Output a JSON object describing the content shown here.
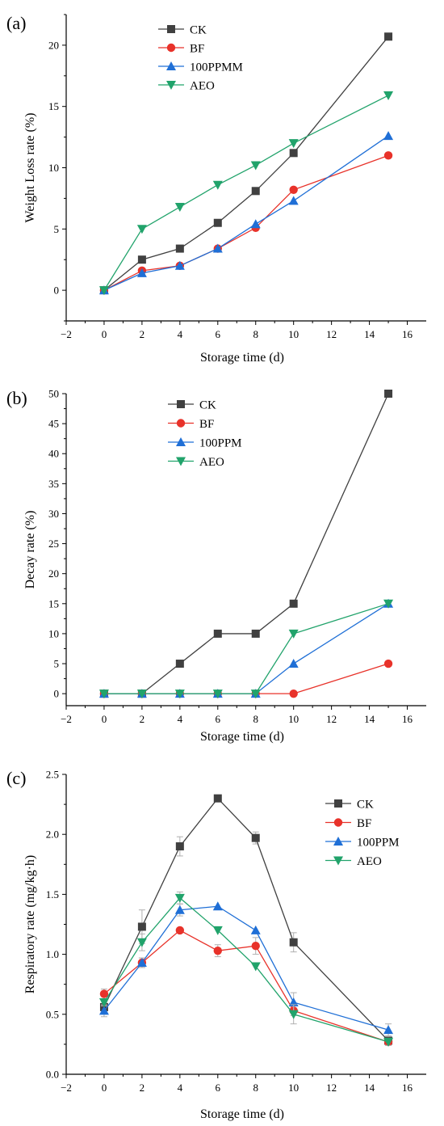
{
  "chart_data": [
    {
      "type": "line",
      "panel_label": "(a)",
      "xlabel": "Storage time (d)",
      "ylabel": "Weight Loss rate (%)",
      "xlim": [
        -2,
        17
      ],
      "ylim": [
        -2.5,
        22.5
      ],
      "xticks": [
        -2,
        0,
        2,
        4,
        6,
        8,
        10,
        12,
        14,
        16
      ],
      "yticks": [
        0,
        5,
        10,
        15,
        20
      ],
      "x": [
        0,
        2,
        4,
        6,
        8,
        10,
        15
      ],
      "legend_position": "top-center",
      "series": [
        {
          "name": "CK",
          "color": "#404040",
          "marker": "square",
          "values": [
            0,
            2.5,
            3.4,
            5.5,
            8.1,
            11.2,
            20.7
          ]
        },
        {
          "name": "BF",
          "color": "#e8322a",
          "marker": "circle",
          "values": [
            0,
            1.6,
            2.0,
            3.4,
            5.1,
            8.2,
            11.0
          ]
        },
        {
          "name": "100PPMM",
          "color": "#1f6fd6",
          "marker": "triangle-up",
          "values": [
            0,
            1.4,
            2.0,
            3.4,
            5.4,
            7.3,
            12.6
          ]
        },
        {
          "name": "AEO",
          "color": "#21a36b",
          "marker": "triangle-down",
          "values": [
            0,
            5.0,
            6.8,
            8.6,
            10.2,
            12.0,
            15.9
          ]
        }
      ]
    },
    {
      "type": "line",
      "panel_label": "(b)",
      "xlabel": "Storage time (d)",
      "ylabel": "Decay rate (%)",
      "xlim": [
        -2,
        17
      ],
      "ylim": [
        -2,
        50
      ],
      "xticks": [
        -2,
        0,
        2,
        4,
        6,
        8,
        10,
        12,
        14,
        16
      ],
      "yticks": [
        0,
        5,
        10,
        15,
        20,
        25,
        30,
        35,
        40,
        45,
        50
      ],
      "x": [
        0,
        2,
        4,
        6,
        8,
        10,
        15
      ],
      "legend_position": "top-center",
      "series": [
        {
          "name": "CK",
          "color": "#404040",
          "marker": "square",
          "values": [
            0,
            0,
            5,
            10,
            10,
            15,
            50
          ]
        },
        {
          "name": "BF",
          "color": "#e8322a",
          "marker": "circle",
          "values": [
            0,
            0,
            0,
            0,
            0,
            0,
            5
          ]
        },
        {
          "name": "100PPM",
          "color": "#1f6fd6",
          "marker": "triangle-up",
          "values": [
            0,
            0,
            0,
            0,
            0,
            5,
            15
          ]
        },
        {
          "name": "AEO",
          "color": "#21a36b",
          "marker": "triangle-down",
          "values": [
            0,
            0,
            0,
            0,
            0,
            10,
            15
          ]
        }
      ]
    },
    {
      "type": "line",
      "panel_label": "(c)",
      "xlabel": "Storage time (d)",
      "ylabel": "Respiratory rate (mg/kg·h)",
      "xlim": [
        -2,
        17
      ],
      "ylim": [
        0,
        2.5
      ],
      "xticks": [
        -2,
        0,
        2,
        4,
        6,
        8,
        10,
        12,
        14,
        16
      ],
      "yticks": [
        "0.0",
        "0.5",
        "1.0",
        "1.5",
        "2.0",
        "2.5"
      ],
      "x": [
        0,
        2,
        4,
        6,
        8,
        10,
        15
      ],
      "legend_position": "top-right",
      "series": [
        {
          "name": "CK",
          "color": "#404040",
          "marker": "square",
          "values": [
            0.56,
            1.23,
            1.9,
            2.3,
            1.97,
            1.1,
            0.28
          ],
          "errors": [
            0.03,
            0.14,
            0.08,
            0.0,
            0.05,
            0.08,
            0.03
          ]
        },
        {
          "name": "BF",
          "color": "#e8322a",
          "marker": "circle",
          "values": [
            0.67,
            0.93,
            1.2,
            1.03,
            1.07,
            0.53,
            0.27
          ],
          "errors": [
            0.04,
            0.04,
            0.0,
            0.05,
            0.07,
            0.04,
            0.02
          ]
        },
        {
          "name": "100PPM",
          "color": "#1f6fd6",
          "marker": "triangle-up",
          "values": [
            0.53,
            0.93,
            1.37,
            1.4,
            1.2,
            0.6,
            0.37
          ],
          "errors": [
            0.05,
            0.04,
            0.05,
            0.0,
            0.0,
            0.08,
            0.05
          ]
        },
        {
          "name": "AEO",
          "color": "#21a36b",
          "marker": "triangle-down",
          "values": [
            0.6,
            1.1,
            1.47,
            1.2,
            0.9,
            0.5,
            0.27
          ],
          "errors": [
            0.03,
            0.07,
            0.05,
            0.0,
            0.0,
            0.08,
            0.03
          ]
        }
      ]
    }
  ]
}
